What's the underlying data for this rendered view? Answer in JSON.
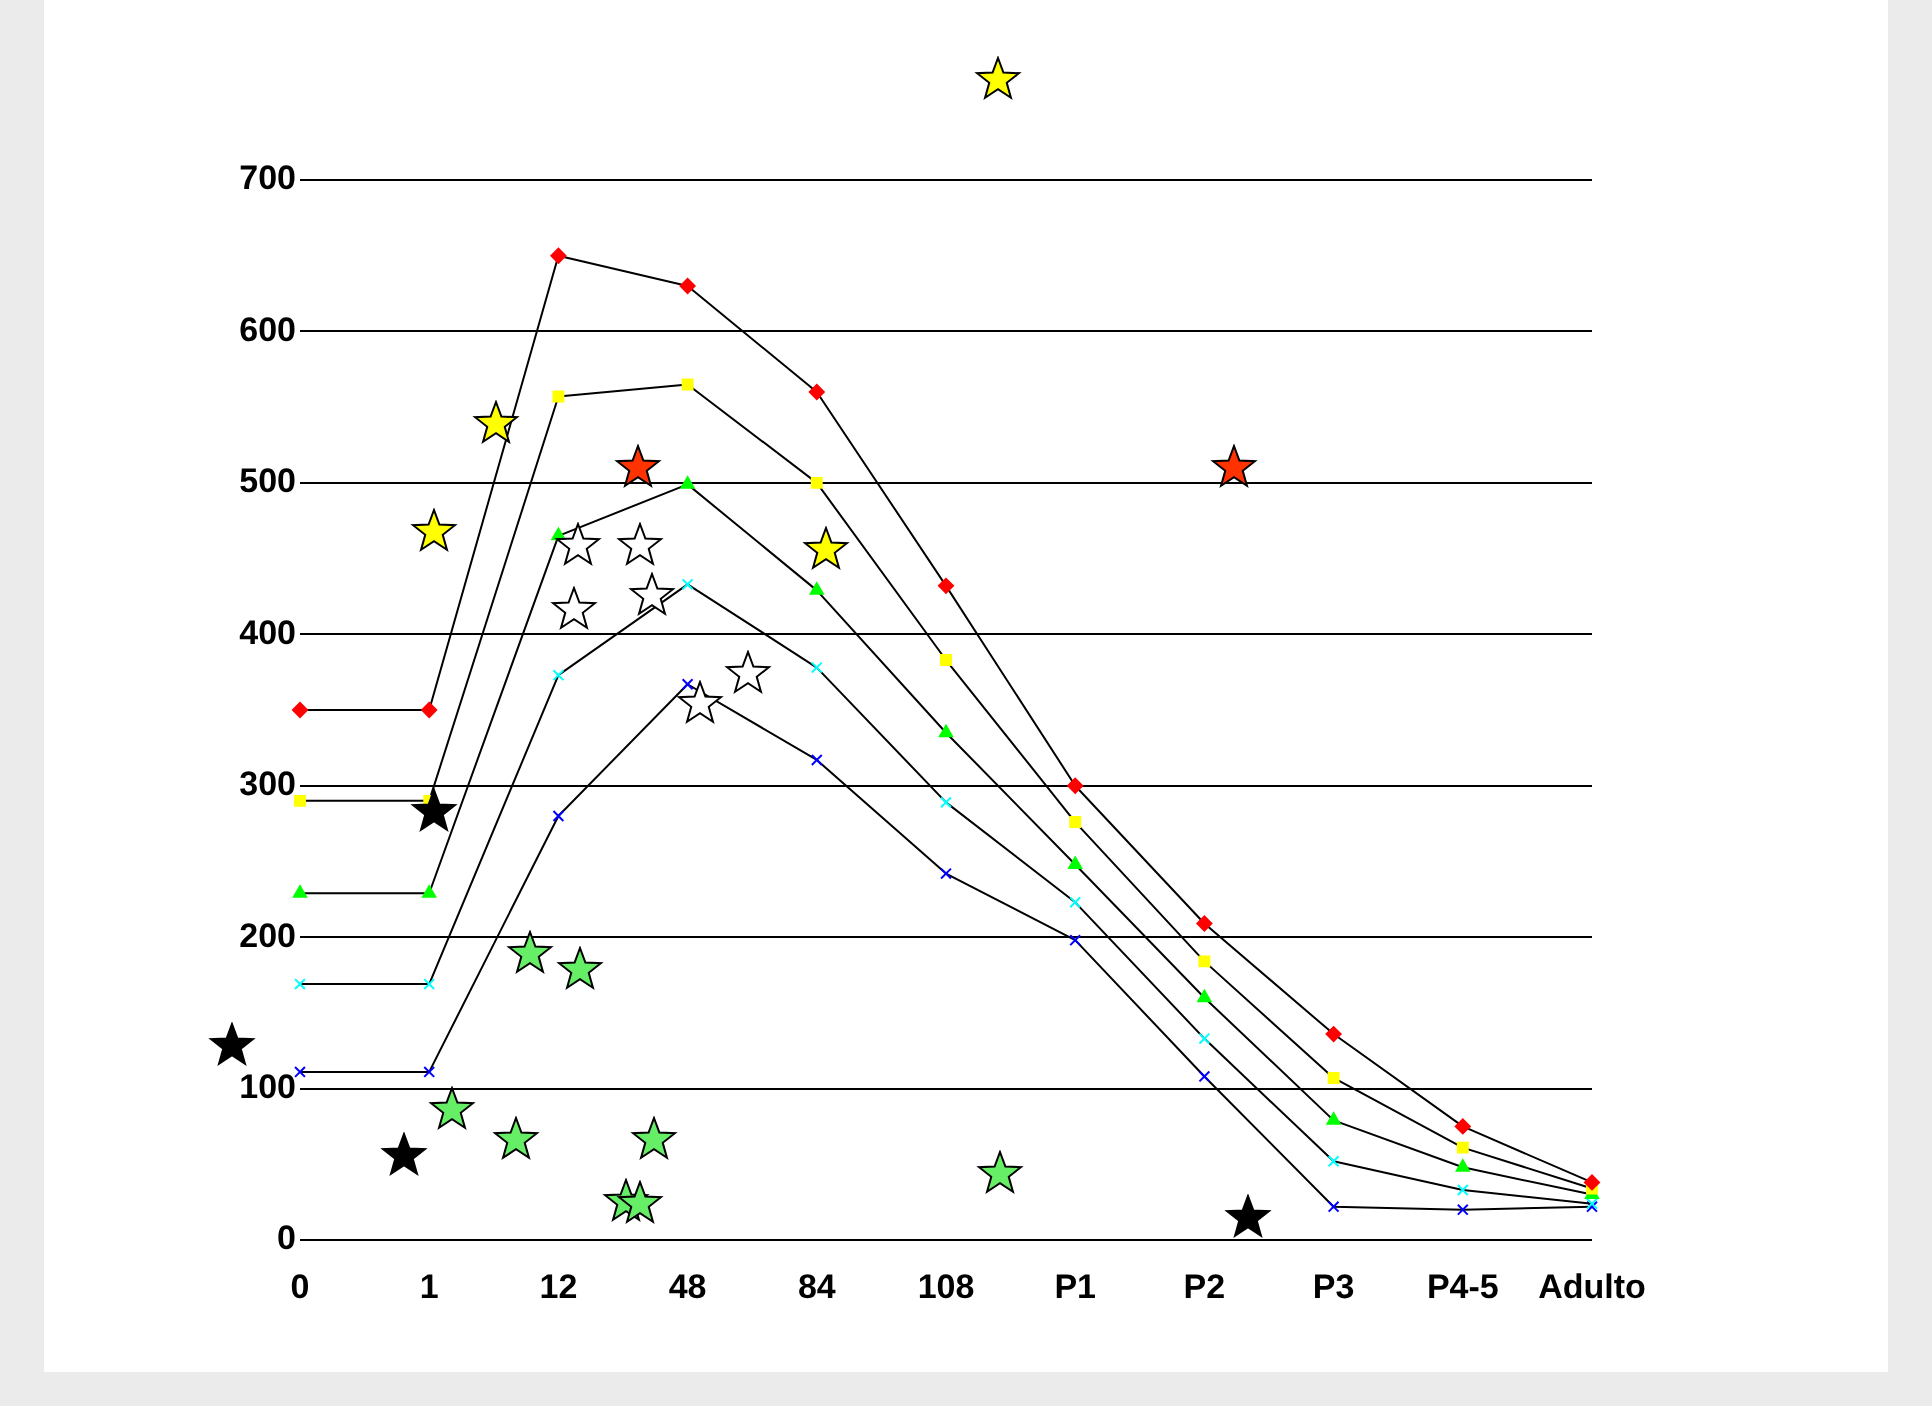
{
  "chart_data": {
    "type": "line",
    "categories": [
      "0",
      "1",
      "12",
      "48",
      "84",
      "108",
      "P1",
      "P2",
      "P3",
      "P4-5",
      "Adulto"
    ],
    "series": [
      {
        "color": "#ff0000",
        "marker": "diamond",
        "values": [
          350,
          350,
          650,
          630,
          560,
          432,
          300,
          209,
          136,
          75,
          38
        ]
      },
      {
        "color": "#ffff00",
        "marker": "square",
        "values": [
          290,
          290,
          557,
          565,
          500,
          383,
          276,
          184,
          107,
          61,
          34
        ]
      },
      {
        "color": "#00ff00",
        "marker": "triangle",
        "values": [
          229,
          229,
          465,
          499,
          429,
          335,
          248,
          160,
          79,
          48,
          30
        ]
      },
      {
        "color": "#00ffff",
        "marker": "cross",
        "values": [
          169,
          169,
          373,
          433,
          378,
          289,
          223,
          133,
          52,
          33,
          24
        ]
      },
      {
        "color": "#0000ff",
        "marker": "cross",
        "values": [
          111,
          111,
          280,
          367,
          317,
          242,
          198,
          108,
          22,
          20,
          22
        ]
      }
    ],
    "ylim": [
      0,
      700
    ],
    "yticks": [
      0,
      100,
      200,
      300,
      400,
      500,
      600,
      700
    ],
    "grid": "y",
    "legend": false
  }
}
